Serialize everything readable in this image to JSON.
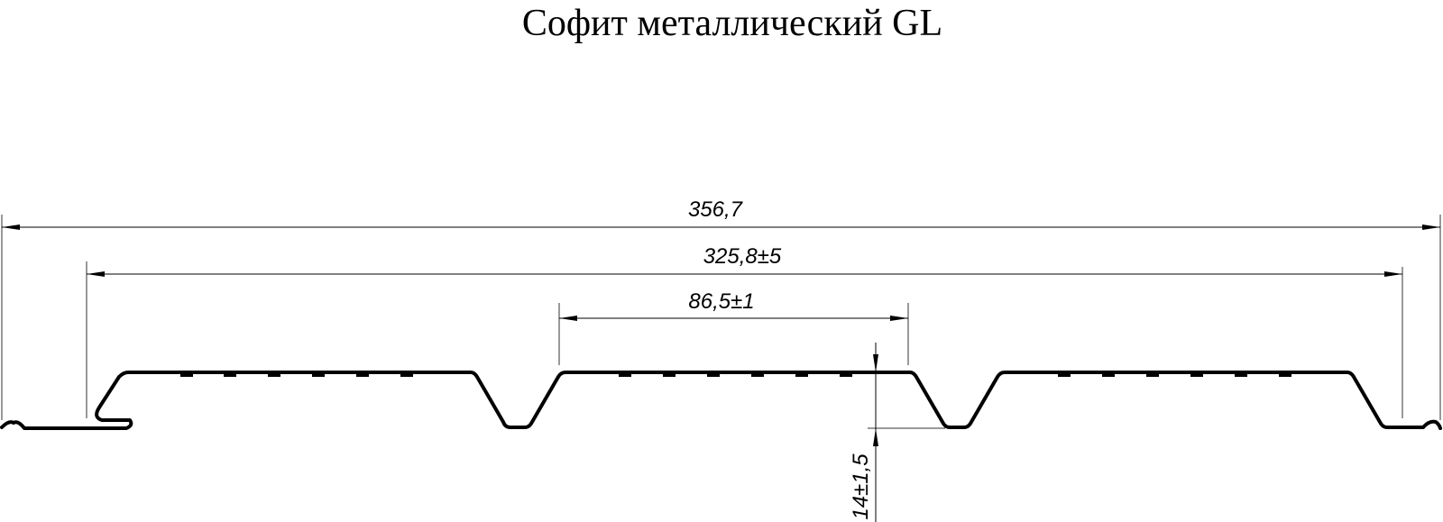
{
  "title": "Софит металлический GL",
  "dimensions": {
    "overall_width": "356,7",
    "working_width": "325,8±5",
    "rib_pitch": "86,5±1",
    "profile_height": "14±1,5"
  },
  "colors": {
    "line": "#000000",
    "dimension_line": "#333333"
  }
}
